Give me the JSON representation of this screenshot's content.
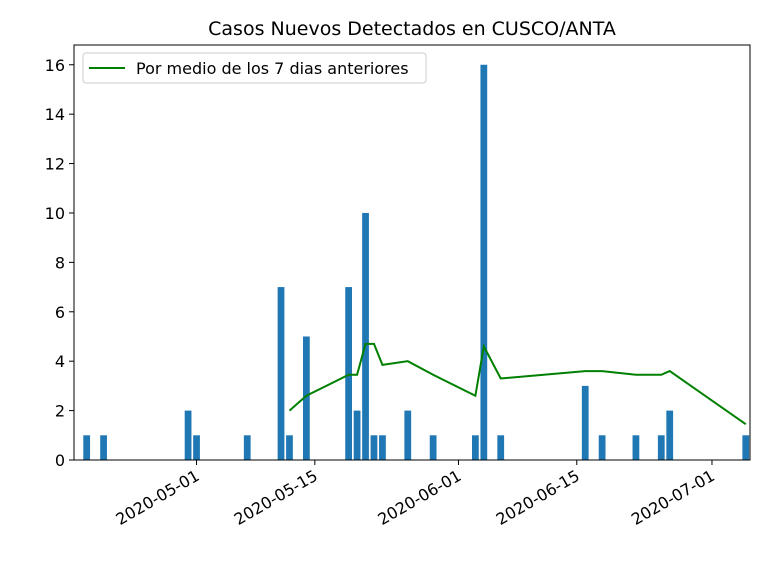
{
  "chart_data": {
    "type": "bar",
    "title": "Casos Nuevos Detectados en CUSCO/ANTA",
    "xlabel": "",
    "ylabel": "",
    "x_range": [
      "2020-04-17",
      "2020-07-05"
    ],
    "ylim": [
      0,
      16.8
    ],
    "y_ticks": [
      0,
      2,
      4,
      6,
      8,
      10,
      12,
      14,
      16
    ],
    "x_ticks": [
      "2020-05-01",
      "2020-05-15",
      "2020-06-01",
      "2020-06-15",
      "2020-07-01"
    ],
    "grid": false,
    "legend_position": "top-left",
    "bar_color": "#1f77b4",
    "line_color": "#008000",
    "bars": [
      {
        "date": "2020-04-18",
        "value": 1
      },
      {
        "date": "2020-04-20",
        "value": 1
      },
      {
        "date": "2020-04-30",
        "value": 2
      },
      {
        "date": "2020-05-01",
        "value": 1
      },
      {
        "date": "2020-05-07",
        "value": 1
      },
      {
        "date": "2020-05-11",
        "value": 7
      },
      {
        "date": "2020-05-12",
        "value": 1
      },
      {
        "date": "2020-05-14",
        "value": 5
      },
      {
        "date": "2020-05-19",
        "value": 7
      },
      {
        "date": "2020-05-20",
        "value": 2
      },
      {
        "date": "2020-05-21",
        "value": 10
      },
      {
        "date": "2020-05-22",
        "value": 1
      },
      {
        "date": "2020-05-23",
        "value": 1
      },
      {
        "date": "2020-05-26",
        "value": 2
      },
      {
        "date": "2020-05-29",
        "value": 1
      },
      {
        "date": "2020-06-03",
        "value": 1
      },
      {
        "date": "2020-06-04",
        "value": 16
      },
      {
        "date": "2020-06-06",
        "value": 1
      },
      {
        "date": "2020-06-16",
        "value": 3
      },
      {
        "date": "2020-06-18",
        "value": 1
      },
      {
        "date": "2020-06-22",
        "value": 1
      },
      {
        "date": "2020-06-25",
        "value": 1
      },
      {
        "date": "2020-06-26",
        "value": 2
      },
      {
        "date": "2020-07-05",
        "value": 1
      }
    ],
    "series": [
      {
        "name": "Por medio de los 7 dias anteriores",
        "points": [
          {
            "date": "2020-05-12",
            "value": 2.0
          },
          {
            "date": "2020-05-14",
            "value": 2.6
          },
          {
            "date": "2020-05-19",
            "value": 3.45
          },
          {
            "date": "2020-05-20",
            "value": 3.45
          },
          {
            "date": "2020-05-21",
            "value": 4.7
          },
          {
            "date": "2020-05-22",
            "value": 4.7
          },
          {
            "date": "2020-05-23",
            "value": 3.85
          },
          {
            "date": "2020-05-26",
            "value": 4.0
          },
          {
            "date": "2020-05-29",
            "value": 3.45
          },
          {
            "date": "2020-06-03",
            "value": 2.6
          },
          {
            "date": "2020-06-04",
            "value": 4.6
          },
          {
            "date": "2020-06-06",
            "value": 3.3
          },
          {
            "date": "2020-06-16",
            "value": 3.6
          },
          {
            "date": "2020-06-18",
            "value": 3.6
          },
          {
            "date": "2020-06-22",
            "value": 3.45
          },
          {
            "date": "2020-06-25",
            "value": 3.45
          },
          {
            "date": "2020-06-26",
            "value": 3.6
          },
          {
            "date": "2020-07-05",
            "value": 1.45
          }
        ]
      }
    ]
  }
}
